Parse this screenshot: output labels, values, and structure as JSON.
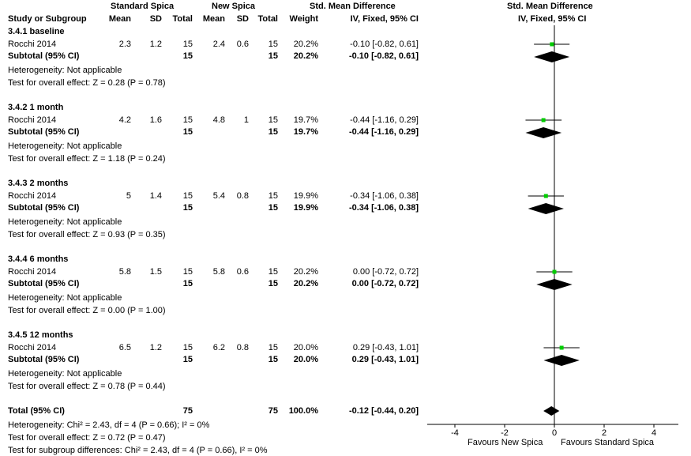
{
  "header": {
    "group1": "Standard Spica",
    "group2": "New Spica",
    "effect_title": "Std. Mean Difference",
    "effect_sub": "IV, Fixed, 95% CI",
    "plot_title": "Std. Mean Difference",
    "plot_sub": "IV, Fixed, 95% CI",
    "cols": {
      "study": "Study or Subgroup",
      "mean1": "Mean",
      "sd1": "SD",
      "total1": "Total",
      "mean2": "Mean",
      "sd2": "SD",
      "total2": "Total",
      "weight": "Weight"
    }
  },
  "subgroups": [
    {
      "title": "3.4.1 baseline",
      "study": {
        "name": "Rocchi 2014",
        "mean1": "2.3",
        "sd1": "1.2",
        "total1": "15",
        "mean2": "2.4",
        "sd2": "0.6",
        "total2": "15",
        "weight": "20.2%",
        "ci": "-0.10 [-0.82, 0.61]"
      },
      "subtotal": {
        "label": "Subtotal (95% CI)",
        "total1": "15",
        "total2": "15",
        "weight": "20.2%",
        "ci": "-0.10 [-0.82, 0.61]"
      },
      "heterogeneity": "Heterogeneity: Not applicable",
      "overall": "Test for overall effect: Z = 0.28 (P = 0.78)"
    },
    {
      "title": "3.4.2 1 month",
      "study": {
        "name": "Rocchi 2014",
        "mean1": "4.2",
        "sd1": "1.6",
        "total1": "15",
        "mean2": "4.8",
        "sd2": "1",
        "total2": "15",
        "weight": "19.7%",
        "ci": "-0.44 [-1.16, 0.29]"
      },
      "subtotal": {
        "label": "Subtotal (95% CI)",
        "total1": "15",
        "total2": "15",
        "weight": "19.7%",
        "ci": "-0.44 [-1.16, 0.29]"
      },
      "heterogeneity": "Heterogeneity: Not applicable",
      "overall": "Test for overall effect: Z = 1.18 (P = 0.24)"
    },
    {
      "title": "3.4.3 2 months",
      "study": {
        "name": "Rocchi 2014",
        "mean1": "5",
        "sd1": "1.4",
        "total1": "15",
        "mean2": "5.4",
        "sd2": "0.8",
        "total2": "15",
        "weight": "19.9%",
        "ci": "-0.34 [-1.06, 0.38]"
      },
      "subtotal": {
        "label": "Subtotal (95% CI)",
        "total1": "15",
        "total2": "15",
        "weight": "19.9%",
        "ci": "-0.34 [-1.06, 0.38]"
      },
      "heterogeneity": "Heterogeneity: Not applicable",
      "overall": "Test for overall effect: Z = 0.93 (P = 0.35)"
    },
    {
      "title": "3.4.4 6 months",
      "study": {
        "name": "Rocchi 2014",
        "mean1": "5.8",
        "sd1": "1.5",
        "total1": "15",
        "mean2": "5.8",
        "sd2": "0.6",
        "total2": "15",
        "weight": "20.2%",
        "ci": "0.00 [-0.72, 0.72]"
      },
      "subtotal": {
        "label": "Subtotal (95% CI)",
        "total1": "15",
        "total2": "15",
        "weight": "20.2%",
        "ci": "0.00 [-0.72, 0.72]"
      },
      "heterogeneity": "Heterogeneity: Not applicable",
      "overall": "Test for overall effect: Z = 0.00 (P = 1.00)"
    },
    {
      "title": "3.4.5 12 months",
      "study": {
        "name": "Rocchi 2014",
        "mean1": "6.5",
        "sd1": "1.2",
        "total1": "15",
        "mean2": "6.2",
        "sd2": "0.8",
        "total2": "15",
        "weight": "20.0%",
        "ci": "0.29 [-0.43, 1.01]"
      },
      "subtotal": {
        "label": "Subtotal (95% CI)",
        "total1": "15",
        "total2": "15",
        "weight": "20.0%",
        "ci": "0.29 [-0.43, 1.01]"
      },
      "heterogeneity": "Heterogeneity: Not applicable",
      "overall": "Test for overall effect: Z = 0.78 (P = 0.44)"
    }
  ],
  "total": {
    "label": "Total (95% CI)",
    "total1": "75",
    "total2": "75",
    "weight": "100.0%",
    "ci": "-0.12 [-0.44, 0.20]",
    "heterogeneity": "Heterogeneity: Chi² = 2.43, df = 4 (P = 0.66); I² = 0%",
    "overall": "Test for overall effect: Z = 0.72 (P = 0.47)",
    "subgroup_diff": "Test for subgroup differences: Chi² = 2.43, df = 4 (P = 0.66), I² = 0%"
  },
  "axis": {
    "ticks": [
      "-4",
      "-2",
      "0",
      "2",
      "4"
    ],
    "favours_left": "Favours New Spica",
    "favours_right": "Favours Standard Spica"
  },
  "colors": {
    "study_marker": "#00cc00",
    "diamond": "#000000"
  },
  "chart_data": {
    "type": "forest",
    "xlim": [
      -5,
      5
    ],
    "xticks": [
      -4,
      -2,
      0,
      2,
      4
    ],
    "rows": [
      {
        "group": "3.4.1 baseline",
        "kind": "study",
        "est": -0.1,
        "lo": -0.82,
        "hi": 0.61,
        "weight": 20.2
      },
      {
        "group": "3.4.1 baseline",
        "kind": "subtotal",
        "est": -0.1,
        "lo": -0.82,
        "hi": 0.61
      },
      {
        "group": "3.4.2 1 month",
        "kind": "study",
        "est": -0.44,
        "lo": -1.16,
        "hi": 0.29,
        "weight": 19.7
      },
      {
        "group": "3.4.2 1 month",
        "kind": "subtotal",
        "est": -0.44,
        "lo": -1.16,
        "hi": 0.29
      },
      {
        "group": "3.4.3 2 months",
        "kind": "study",
        "est": -0.34,
        "lo": -1.06,
        "hi": 0.38,
        "weight": 19.9
      },
      {
        "group": "3.4.3 2 months",
        "kind": "subtotal",
        "est": -0.34,
        "lo": -1.06,
        "hi": 0.38
      },
      {
        "group": "3.4.4 6 months",
        "kind": "study",
        "est": 0.0,
        "lo": -0.72,
        "hi": 0.72,
        "weight": 20.2
      },
      {
        "group": "3.4.4 6 months",
        "kind": "subtotal",
        "est": 0.0,
        "lo": -0.72,
        "hi": 0.72
      },
      {
        "group": "3.4.5 12 months",
        "kind": "study",
        "est": 0.29,
        "lo": -0.43,
        "hi": 1.01,
        "weight": 20.0
      },
      {
        "group": "3.4.5 12 months",
        "kind": "subtotal",
        "est": 0.29,
        "lo": -0.43,
        "hi": 1.01
      },
      {
        "group": "Total",
        "kind": "total",
        "est": -0.12,
        "lo": -0.44,
        "hi": 0.2
      }
    ]
  }
}
